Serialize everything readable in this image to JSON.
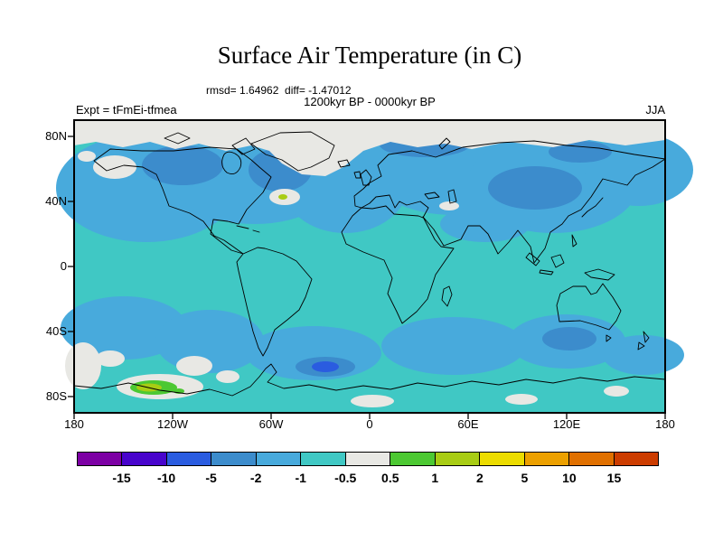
{
  "title": "Surface Air Temperature (in C)",
  "subtitle": {
    "stats": "rmsd= 1.64962  diff= -1.47012",
    "period": "1200kyr BP - 0000kyr BP"
  },
  "annotations": {
    "experiment": "Expt = tFmEi-tfmea",
    "season": "JJA"
  },
  "axes": {
    "lat_ticks": [
      "80N",
      "40N",
      "0",
      "40S",
      "80S"
    ],
    "lon_ticks": [
      "180",
      "120W",
      "60W",
      "0",
      "60E",
      "120E",
      "180"
    ]
  },
  "colorbar": {
    "labels": [
      "-15",
      "-10",
      "-5",
      "-2",
      "-1",
      "-0.5",
      "0.5",
      "1",
      "2",
      "5",
      "10",
      "15"
    ],
    "colors": [
      "#7c00a4",
      "#4804cc",
      "#2a5ce0",
      "#3c8ccc",
      "#48aadc",
      "#40c8c4",
      "#e8e8e4",
      "#4cc832",
      "#a8cc14",
      "#ecdc00",
      "#eca000",
      "#e07000",
      "#cc3c00"
    ]
  },
  "chart_data": {
    "type": "heatmap",
    "title": "Surface Air Temperature (in C)",
    "subtitle": "1200kyr BP - 0000kyr BP",
    "season": "JJA",
    "experiment": "Expt = tFmEi-tfmea",
    "rmsd": 1.64962,
    "diff": -1.47012,
    "units": "C",
    "projection": "global lon-lat map",
    "lon_range": [
      -180,
      180
    ],
    "lat_range": [
      -90,
      90
    ],
    "contour_levels": [
      -15,
      -10,
      -5,
      -2,
      -1,
      -0.5,
      0.5,
      1,
      2,
      5,
      10,
      15
    ],
    "palette": [
      "#7c00a4",
      "#4804cc",
      "#2a5ce0",
      "#3c8ccc",
      "#48aadc",
      "#40c8c4",
      "#e8e8e4",
      "#4cc832",
      "#a8cc14",
      "#ecdc00",
      "#eca000",
      "#e07000",
      "#cc3c00"
    ],
    "legend_position": "bottom",
    "grid": false,
    "field_summary": [
      {
        "region": "most tropical and subtropical oceans, Africa, South America, Antarctica interior",
        "anomaly_c": "-1 to -0.5"
      },
      {
        "region": "northern mid/high-latitude continents, North Pacific, North Atlantic, Southern Ocean bands",
        "anomaly_c": "-2 to -1"
      },
      {
        "region": "central Canada, subpolar North Atlantic, Barents Sea region, central Asia, south of Australia, South Atlantic near 60S",
        "anomaly_c": "-5 to -2"
      },
      {
        "region": "core of South Atlantic patch near 60S",
        "anomaly_c": "-10 to -5"
      },
      {
        "region": "Arctic cap, Greenland, northeast Pacific coast, mid-North-Atlantic spot, Southern Ocean patches near 60S",
        "anomaly_c": "-0.5 to 0.5"
      },
      {
        "region": "Antarctic coastal patch near 120W",
        "anomaly_c": "0.5 to 2"
      },
      {
        "region": "small mid-North-Atlantic spot near 40N",
        "anomaly_c": "1 to 2"
      }
    ]
  }
}
